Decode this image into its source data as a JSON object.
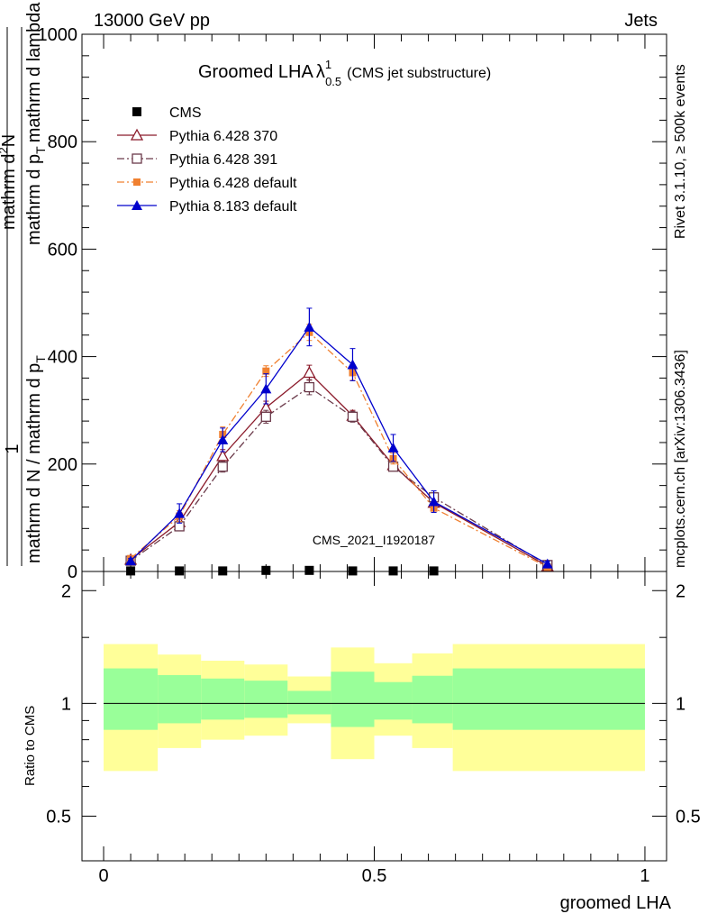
{
  "header": {
    "left": "13000 GeV pp",
    "right": "Jets",
    "side_top": "Rivet 3.1.10, ≥ 500k events",
    "side_bottom": "mcplots.cern.ch [arXiv:1306.3436]"
  },
  "chart_data": {
    "type": "line",
    "title_main": "Groomed LHA",
    "title_lambda": "λ",
    "title_sup": "1",
    "title_sub": "0.5",
    "title_note": "(CMS jet substructure)",
    "watermark": "CMS_2021_I1920187",
    "xlabel": "groomed LHA",
    "ylabel": {
      "one": "1",
      "den": "mathrm d N / mathrm d p",
      "den_sub": "T",
      "num1": "mathrm d",
      "num1_sup": "2",
      "num2": "N",
      "den2": "mathrm d p",
      "den2_sub": "T",
      "den3": "mathrm d lambda"
    },
    "xlim": [
      -0.04,
      1.04
    ],
    "ylim": [
      0,
      1000
    ],
    "y_ticks": [
      0,
      200,
      400,
      600,
      800,
      1000
    ],
    "y_tick_labels": [
      "0",
      "200",
      "400",
      "600",
      "800",
      "1000"
    ],
    "x_ticks": [
      0,
      0.5,
      1
    ],
    "x_tick_labels": [
      "0",
      "0.5",
      "1"
    ],
    "x": [
      0.05,
      0.14,
      0.22,
      0.3,
      0.38,
      0.46,
      0.535,
      0.61,
      0.82
    ],
    "series": [
      {
        "name": "CMS",
        "color": "#000000",
        "marker": "square-filled",
        "dash": "none",
        "values": [
          1,
          1,
          1,
          2,
          2,
          1,
          1,
          1,
          null
        ],
        "errors": [
          0,
          0,
          0,
          0,
          0,
          0,
          0,
          0,
          0
        ]
      },
      {
        "name": "Pythia 6.428 370",
        "color": "#8b1a2a",
        "marker": "triangle-open",
        "dash": "solid",
        "values": [
          22,
          92,
          215,
          305,
          370,
          290,
          198,
          128,
          10
        ],
        "errors": [
          4,
          8,
          12,
          12,
          14,
          10,
          8,
          8,
          3
        ]
      },
      {
        "name": "Pythia 6.428 391",
        "color": "#6b3a4a",
        "marker": "square-open",
        "dash": "dashdot",
        "values": [
          20,
          84,
          195,
          288,
          343,
          288,
          195,
          138,
          12
        ],
        "errors": [
          4,
          8,
          10,
          12,
          14,
          10,
          8,
          8,
          3
        ]
      },
      {
        "name": "Pythia 6.428 default",
        "color": "#f08030",
        "marker": "square-filled-small",
        "dash": "dashdot",
        "values": [
          24,
          103,
          255,
          373,
          445,
          370,
          210,
          118,
          8
        ],
        "errors": [
          4,
          10,
          14,
          10,
          15,
          14,
          10,
          8,
          3
        ]
      },
      {
        "name": "Pythia 8.183 default",
        "color": "#0000cc",
        "marker": "triangle-filled",
        "dash": "solid",
        "values": [
          20,
          108,
          245,
          340,
          455,
          385,
          230,
          130,
          14
        ],
        "errors": [
          4,
          18,
          22,
          28,
          35,
          30,
          25,
          20,
          5
        ]
      }
    ],
    "ratio": {
      "ylabel": "Ratio to CMS",
      "ylim": [
        0.38,
        2.25
      ],
      "ref": 1,
      "y_ticks": [
        0.5,
        1,
        2
      ],
      "y_tick_labels": [
        "0.5",
        "1",
        "2"
      ],
      "bins": [
        {
          "x0": 0.0,
          "x1": 0.1,
          "green": [
            0.85,
            1.24
          ],
          "yellow": [
            0.66,
            1.44
          ]
        },
        {
          "x0": 0.1,
          "x1": 0.18,
          "green": [
            0.885,
            1.19
          ],
          "yellow": [
            0.76,
            1.35
          ]
        },
        {
          "x0": 0.18,
          "x1": 0.26,
          "green": [
            0.905,
            1.165
          ],
          "yellow": [
            0.8,
            1.3
          ]
        },
        {
          "x0": 0.26,
          "x1": 0.34,
          "green": [
            0.915,
            1.15
          ],
          "yellow": [
            0.82,
            1.27
          ]
        },
        {
          "x0": 0.34,
          "x1": 0.42,
          "green": [
            0.935,
            1.08
          ],
          "yellow": [
            0.885,
            1.18
          ]
        },
        {
          "x0": 0.42,
          "x1": 0.5,
          "green": [
            0.865,
            1.215
          ],
          "yellow": [
            0.71,
            1.41
          ]
        },
        {
          "x0": 0.5,
          "x1": 0.57,
          "green": [
            0.905,
            1.14
          ],
          "yellow": [
            0.82,
            1.28
          ]
        },
        {
          "x0": 0.57,
          "x1": 0.645,
          "green": [
            0.885,
            1.185
          ],
          "yellow": [
            0.76,
            1.36
          ]
        },
        {
          "x0": 0.645,
          "x1": 1.0,
          "green": [
            0.85,
            1.24
          ],
          "yellow": [
            0.66,
            1.44
          ]
        }
      ],
      "colors": {
        "green": "#99ff99",
        "yellow": "#ffff99"
      }
    }
  }
}
